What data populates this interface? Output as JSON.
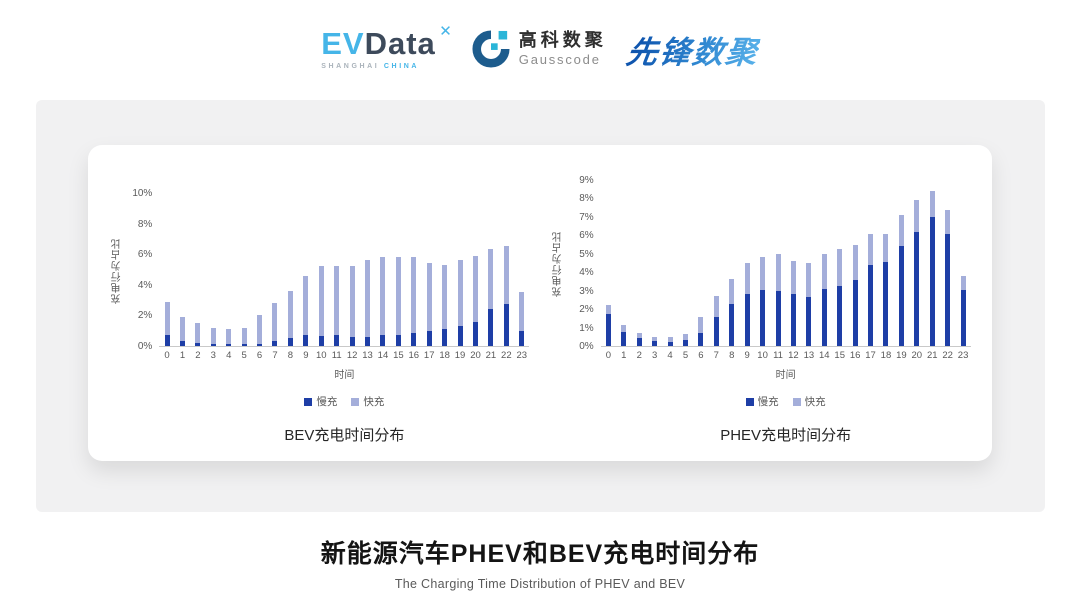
{
  "page": {
    "logos": {
      "evdata": {
        "ev": "EV",
        "data": "Data",
        "spark": "✕",
        "sub_left": "SHANGHAI",
        "sub_right": "CHINA"
      },
      "gausscode": {
        "cn": "高科数聚",
        "en": "Gausscode"
      },
      "pioneer": {
        "text": "先锋数聚"
      }
    },
    "footer": {
      "title": "新能源汽车PHEV和BEV充电时间分布",
      "subtitle": "The Charging Time Distribution of PHEV and BEV"
    }
  },
  "colors": {
    "slow_charge": "#1e3ea6",
    "fast_charge": "#a4aeda",
    "axis_text": "#595959",
    "panel_gray": "#f1f1f2",
    "evdata_cyan": "#45b5e8",
    "evdata_slate": "#3d4a5b",
    "gauss_blue": "#1d5c8d",
    "gauss_cyan": "#2ab5d8",
    "pioneer_blue": "#2e86d0"
  },
  "chart_data": [
    {
      "type": "bar",
      "stacked": true,
      "title": "BEV充电时间分布",
      "xlabel": "时间",
      "ylabel": "充电行为占比",
      "ylim": [
        0,
        10
      ],
      "ytick_step": 2,
      "ytick_suffix": "%",
      "grid": false,
      "legend_position": "bottom",
      "categories": [
        "0",
        "1",
        "2",
        "3",
        "4",
        "5",
        "6",
        "7",
        "8",
        "9",
        "10",
        "11",
        "12",
        "13",
        "14",
        "15",
        "16",
        "17",
        "18",
        "19",
        "20",
        "21",
        "22",
        "23"
      ],
      "series": [
        {
          "name": "慢充",
          "color": "#1e3ea6",
          "values": [
            0.7,
            0.35,
            0.2,
            0.1,
            0.1,
            0.1,
            0.15,
            0.35,
            0.5,
            0.7,
            0.65,
            0.7,
            0.6,
            0.6,
            0.7,
            0.7,
            0.85,
            1.0,
            1.1,
            1.3,
            1.6,
            2.4,
            2.75,
            1.0
          ]
        },
        {
          "name": "快充",
          "color": "#a4aeda",
          "values": [
            2.2,
            1.55,
            1.3,
            1.1,
            1.0,
            1.1,
            1.85,
            2.45,
            3.1,
            3.9,
            4.55,
            4.55,
            4.6,
            5.05,
            5.1,
            5.1,
            5.0,
            4.45,
            4.2,
            4.3,
            4.3,
            3.95,
            3.8,
            2.55
          ]
        }
      ]
    },
    {
      "type": "bar",
      "stacked": true,
      "title": "PHEV充电时间分布",
      "xlabel": "时间",
      "ylabel": "充电行为占比",
      "ylim": [
        0,
        9
      ],
      "ytick_step": 1,
      "ytick_suffix": "%",
      "grid": false,
      "legend_position": "bottom",
      "categories": [
        "0",
        "1",
        "2",
        "3",
        "4",
        "5",
        "6",
        "7",
        "8",
        "9",
        "10",
        "11",
        "12",
        "13",
        "14",
        "15",
        "16",
        "17",
        "18",
        "19",
        "20",
        "21",
        "22",
        "23"
      ],
      "series": [
        {
          "name": "慢充",
          "color": "#1e3ea6",
          "values": [
            1.75,
            0.75,
            0.45,
            0.25,
            0.2,
            0.3,
            0.7,
            1.6,
            2.3,
            2.8,
            3.05,
            3.0,
            2.8,
            2.65,
            3.1,
            3.25,
            3.6,
            4.4,
            4.55,
            5.4,
            6.2,
            7.0,
            6.1,
            3.05
          ]
        },
        {
          "name": "快充",
          "color": "#a4aeda",
          "values": [
            0.45,
            0.4,
            0.25,
            0.25,
            0.3,
            0.35,
            0.9,
            1.1,
            1.35,
            1.7,
            1.75,
            2.0,
            1.8,
            1.85,
            1.9,
            2.0,
            1.9,
            1.7,
            1.55,
            1.7,
            1.7,
            1.4,
            1.25,
            0.75
          ]
        }
      ]
    }
  ]
}
